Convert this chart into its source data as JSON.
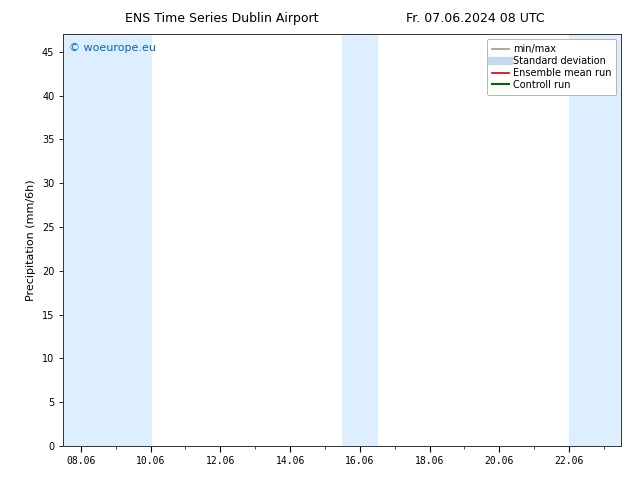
{
  "title_left": "ENS Time Series Dublin Airport",
  "title_right": "Fr. 07.06.2024 08 UTC",
  "ylabel": "Precipitation (mm/6h)",
  "watermark": "© woeurope.eu",
  "watermark_color": "#0066cc",
  "xlim_start": 7.5,
  "xlim_end": 23.5,
  "ylim": [
    0,
    47
  ],
  "yticks": [
    0,
    5,
    10,
    15,
    20,
    25,
    30,
    35,
    40,
    45
  ],
  "xtick_labels": [
    "08.06",
    "10.06",
    "12.06",
    "14.06",
    "16.06",
    "18.06",
    "20.06",
    "22.06"
  ],
  "xtick_positions": [
    8,
    10,
    12,
    14,
    16,
    18,
    20,
    22
  ],
  "background_color": "#ffffff",
  "shaded_bands": [
    {
      "x_start": 7.5,
      "x_end": 10.0,
      "color": "#ddeeff"
    },
    {
      "x_start": 15.5,
      "x_end": 16.5,
      "color": "#ddeeff"
    },
    {
      "x_start": 22.0,
      "x_end": 23.5,
      "color": "#ddeeff"
    }
  ],
  "legend_entries": [
    {
      "label": "min/max",
      "color": "#999999",
      "linewidth": 1.2,
      "linestyle": "-",
      "type": "line"
    },
    {
      "label": "Standard deviation",
      "color": "#c5d8ed",
      "linewidth": 6,
      "linestyle": "-",
      "type": "line"
    },
    {
      "label": "Ensemble mean run",
      "color": "#cc0000",
      "linewidth": 1.2,
      "linestyle": "-",
      "type": "line"
    },
    {
      "label": "Controll run",
      "color": "#006600",
      "linewidth": 1.5,
      "linestyle": "-",
      "type": "line"
    }
  ],
  "title_fontsize": 9,
  "ylabel_fontsize": 8,
  "tick_fontsize": 7,
  "legend_fontsize": 7,
  "watermark_fontsize": 8
}
